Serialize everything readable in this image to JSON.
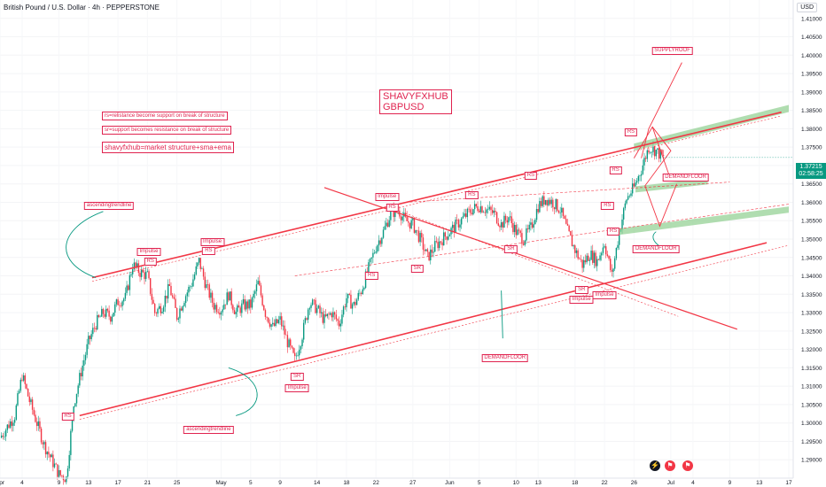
{
  "header": {
    "symbol": "British Pound / U.S. Dollar · 4h · PEPPERSTONE",
    "currency": "USD"
  },
  "price_tag": {
    "price": "1.37215",
    "countdown": "02:58:25"
  },
  "brand": {
    "line1": "SHAVYFXHUB",
    "line2": "GBPUSD"
  },
  "notes": [
    "rs=relistance become support on break of structure",
    "sr=support becomes resistance on break of structure",
    "shavyfxhub=market structure+sma+ema"
  ],
  "colors": {
    "up": "#089981",
    "down": "#f23645",
    "annotation": "#e0234f",
    "zone": "#8fcf8f"
  },
  "bottom_icons": [
    "lightning-icon",
    "flag-icon",
    "flag-icon"
  ],
  "chart_data": {
    "type": "candlestick",
    "ylim": [
      1.285,
      1.415
    ],
    "y_ticks": [
      "1.41000",
      "1.40500",
      "1.40000",
      "1.39500",
      "1.39000",
      "1.38500",
      "1.38000",
      "1.37500",
      "1.37000",
      "1.36500",
      "1.36000",
      "1.35500",
      "1.35000",
      "1.34500",
      "1.34000",
      "1.33500",
      "1.33000",
      "1.32500",
      "1.32000",
      "1.31500",
      "1.31000",
      "1.30500",
      "1.30000",
      "1.29500",
      "1.29000"
    ],
    "x_ticks": [
      {
        "label": "Apr",
        "day": 0
      },
      {
        "label": "4",
        "day": 3
      },
      {
        "label": "9",
        "day": 8
      },
      {
        "label": "13",
        "day": 12
      },
      {
        "label": "17",
        "day": 16
      },
      {
        "label": "21",
        "day": 20
      },
      {
        "label": "25",
        "day": 24
      },
      {
        "label": "May",
        "day": 30
      },
      {
        "label": "5",
        "day": 34
      },
      {
        "label": "9",
        "day": 38
      },
      {
        "label": "14",
        "day": 43
      },
      {
        "label": "18",
        "day": 47
      },
      {
        "label": "22",
        "day": 51
      },
      {
        "label": "27",
        "day": 56
      },
      {
        "label": "Jun",
        "day": 61
      },
      {
        "label": "5",
        "day": 65
      },
      {
        "label": "10",
        "day": 70
      },
      {
        "label": "13",
        "day": 73
      },
      {
        "label": "18",
        "day": 78
      },
      {
        "label": "22",
        "day": 82
      },
      {
        "label": "26",
        "day": 86
      },
      {
        "label": "Jul",
        "day": 91
      },
      {
        "label": "4",
        "day": 94
      },
      {
        "label": "9",
        "day": 99
      },
      {
        "label": "13",
        "day": 103
      },
      {
        "label": "17",
        "day": 107
      }
    ],
    "price_path": [
      [
        0,
        1.296
      ],
      [
        2,
        1.302
      ],
      [
        3,
        1.313
      ],
      [
        4,
        1.306
      ],
      [
        6,
        1.294
      ],
      [
        8,
        1.286
      ],
      [
        9,
        1.285
      ],
      [
        10,
        1.305
      ],
      [
        11,
        1.314
      ],
      [
        12,
        1.322
      ],
      [
        13,
        1.327
      ],
      [
        14,
        1.33
      ],
      [
        15,
        1.329
      ],
      [
        16,
        1.333
      ],
      [
        17,
        1.334
      ],
      [
        18,
        1.343
      ],
      [
        19,
        1.341
      ],
      [
        20,
        1.34
      ],
      [
        21,
        1.33
      ],
      [
        22,
        1.332
      ],
      [
        23,
        1.337
      ],
      [
        24,
        1.329
      ],
      [
        25,
        1.334
      ],
      [
        26,
        1.338
      ],
      [
        27,
        1.344
      ],
      [
        28,
        1.337
      ],
      [
        29,
        1.332
      ],
      [
        30,
        1.331
      ],
      [
        31,
        1.335
      ],
      [
        32,
        1.33
      ],
      [
        33,
        1.332
      ],
      [
        34,
        1.332
      ],
      [
        35,
        1.338
      ],
      [
        36,
        1.33
      ],
      [
        37,
        1.326
      ],
      [
        38,
        1.328
      ],
      [
        39,
        1.322
      ],
      [
        40,
        1.317
      ],
      [
        41,
        1.324
      ],
      [
        42,
        1.333
      ],
      [
        43,
        1.331
      ],
      [
        44,
        1.328
      ],
      [
        45,
        1.33
      ],
      [
        46,
        1.327
      ],
      [
        47,
        1.334
      ],
      [
        48,
        1.332
      ],
      [
        49,
        1.336
      ],
      [
        50,
        1.342
      ],
      [
        51,
        1.348
      ],
      [
        52,
        1.352
      ],
      [
        53,
        1.357
      ],
      [
        54,
        1.358
      ],
      [
        55,
        1.355
      ],
      [
        56,
        1.354
      ],
      [
        57,
        1.35
      ],
      [
        58,
        1.345
      ],
      [
        59,
        1.348
      ],
      [
        60,
        1.35
      ],
      [
        61,
        1.352
      ],
      [
        62,
        1.354
      ],
      [
        63,
        1.356
      ],
      [
        64,
        1.358
      ],
      [
        65,
        1.359
      ],
      [
        66,
        1.358
      ],
      [
        67,
        1.357
      ],
      [
        68,
        1.354
      ],
      [
        69,
        1.356
      ],
      [
        70,
        1.352
      ],
      [
        71,
        1.35
      ],
      [
        72,
        1.353
      ],
      [
        73,
        1.359
      ],
      [
        74,
        1.361
      ],
      [
        75,
        1.36
      ],
      [
        76,
        1.358
      ],
      [
        77,
        1.352
      ],
      [
        78,
        1.347
      ],
      [
        79,
        1.343
      ],
      [
        80,
        1.346
      ],
      [
        81,
        1.344
      ],
      [
        82,
        1.349
      ],
      [
        83,
        1.34
      ],
      [
        84,
        1.352
      ],
      [
        85,
        1.361
      ],
      [
        86,
        1.364
      ],
      [
        87,
        1.369
      ],
      [
        88,
        1.375
      ],
      [
        89,
        1.374
      ],
      [
        90,
        1.372
      ]
    ],
    "annotations": [
      {
        "text": "Impulse",
        "day": 20.2,
        "price": 1.3465
      },
      {
        "text": "RS",
        "day": 20.4,
        "price": 1.3438
      },
      {
        "text": "Impulse",
        "day": 28.8,
        "price": 1.349
      },
      {
        "text": "RS",
        "day": 28.3,
        "price": 1.3466
      },
      {
        "text": "Impulse",
        "day": 52.5,
        "price": 1.3612
      },
      {
        "text": "RS",
        "day": 53.2,
        "price": 1.3585
      },
      {
        "text": "SR",
        "day": 40.3,
        "price": 1.3125
      },
      {
        "text": "Impulse",
        "day": 40.3,
        "price": 1.3094
      },
      {
        "text": "SR",
        "day": 56.6,
        "price": 1.3417
      },
      {
        "text": "RS",
        "day": 64.0,
        "price": 1.3618
      },
      {
        "text": "RS",
        "day": 72.0,
        "price": 1.367
      },
      {
        "text": "SR",
        "day": 69.3,
        "price": 1.347
      },
      {
        "text": "SR",
        "day": 78.9,
        "price": 1.336
      },
      {
        "text": "Impulse",
        "day": 78.9,
        "price": 1.3333
      },
      {
        "text": "Impulse",
        "day": 82.0,
        "price": 1.3345
      },
      {
        "text": "RS",
        "day": 82.4,
        "price": 1.359
      },
      {
        "text": "RS",
        "day": 83.2,
        "price": 1.352
      },
      {
        "text": "RS",
        "day": 83.5,
        "price": 1.3685
      },
      {
        "text": "RS",
        "day": 85.6,
        "price": 1.379
      },
      {
        "text": "RS",
        "day": 50.4,
        "price": 1.34
      },
      {
        "text": "RS",
        "day": 9.2,
        "price": 1.3015
      },
      {
        "text": "SUPPLYROOF",
        "day": 91.2,
        "price": 1.401
      },
      {
        "text": "DEMANDFLOOR",
        "day": 93.0,
        "price": 1.3665
      },
      {
        "text": "DEMANDFLOOR",
        "day": 89.0,
        "price": 1.347
      },
      {
        "text": "DEMANDFLOOR",
        "day": 68.5,
        "price": 1.3175
      },
      {
        "text": "ascendingtrendline",
        "day": 14.8,
        "price": 1.359
      },
      {
        "text": "ascendingtrendline",
        "day": 28.3,
        "price": 1.298
      }
    ]
  }
}
